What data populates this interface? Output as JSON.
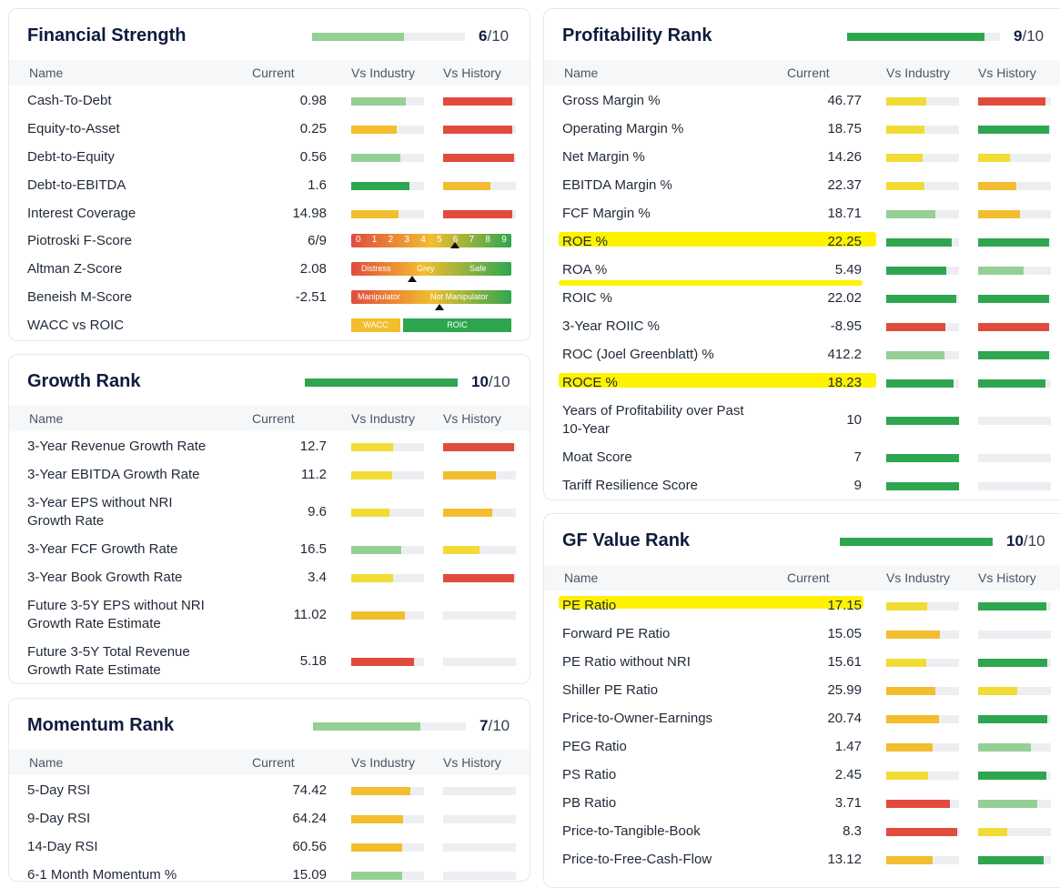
{
  "colors": {
    "green": "#2ea64f",
    "lightgreen": "#94cf96",
    "yellow": "#f0dc34",
    "orange": "#f2bd2f",
    "red": "#e14b3e",
    "empty": "#eceef1"
  },
  "headers": {
    "name": "Name",
    "current": "Current",
    "vs_industry": "Vs Industry",
    "vs_history": "Vs History"
  },
  "financial": {
    "title": "Financial Strength",
    "score": "6",
    "denom": "/10",
    "rank_fraction": 0.6,
    "rows": [
      {
        "name": "Cash-To-Debt",
        "current": "0.98",
        "ind": 0.75,
        "ind_color": "lightgreen",
        "hist": 0.95,
        "hist_color": "red"
      },
      {
        "name": "Equity-to-Asset",
        "current": "0.25",
        "ind": 0.62,
        "ind_color": "orange",
        "hist": 0.95,
        "hist_color": "red"
      },
      {
        "name": "Debt-to-Equity",
        "current": "0.56",
        "ind": 0.68,
        "ind_color": "lightgreen",
        "hist": 0.98,
        "hist_color": "red"
      },
      {
        "name": "Debt-to-EBITDA",
        "current": "1.6",
        "ind": 0.8,
        "ind_color": "green",
        "hist": 0.65,
        "hist_color": "orange"
      },
      {
        "name": "Interest Coverage",
        "current": "14.98",
        "ind": 0.65,
        "ind_color": "orange",
        "hist": 0.95,
        "hist_color": "red"
      }
    ],
    "piotroski": {
      "name": "Piotroski F-Score",
      "current": "6/9",
      "digits": [
        "0",
        "1",
        "2",
        "3",
        "4",
        "5",
        "6",
        "7",
        "8",
        "9"
      ]
    },
    "altman": {
      "name": "Altman Z-Score",
      "current": "2.08",
      "labels": [
        "Distress",
        "Grey",
        "Safe"
      ]
    },
    "beneish": {
      "name": "Beneish M-Score",
      "current": "-2.51",
      "labels": [
        "Manipulator",
        "Not Manipulator"
      ]
    },
    "wacc": {
      "name": "WACC vs ROIC",
      "labels": [
        "WACC",
        "ROIC"
      ]
    }
  },
  "growth": {
    "title": "Growth Rank",
    "score": "10",
    "denom": "/10",
    "rank_fraction": 1.0,
    "rows": [
      {
        "name": "3-Year Revenue Growth Rate",
        "current": "12.7",
        "ind": 0.57,
        "ind_color": "yellow",
        "hist": 0.98,
        "hist_color": "red"
      },
      {
        "name": "3-Year EBITDA Growth Rate",
        "current": "11.2",
        "ind": 0.56,
        "ind_color": "yellow",
        "hist": 0.72,
        "hist_color": "orange"
      },
      {
        "name": "3-Year EPS without NRI",
        "name2": "Growth Rate",
        "current": "9.6",
        "ind": 0.53,
        "ind_color": "yellow",
        "hist": 0.68,
        "hist_color": "orange"
      },
      {
        "name": "3-Year FCF Growth Rate",
        "current": "16.5",
        "ind": 0.69,
        "ind_color": "lightgreen",
        "hist": 0.5,
        "hist_color": "yellow"
      },
      {
        "name": "3-Year Book Growth Rate",
        "current": "3.4",
        "ind": 0.57,
        "ind_color": "yellow",
        "hist": 0.98,
        "hist_color": "red"
      },
      {
        "name": "Future 3-5Y EPS without NRI",
        "name2": "Growth Rate Estimate",
        "current": "11.02",
        "ind": 0.74,
        "ind_color": "orange",
        "hist": 0,
        "hist_color": "empty"
      },
      {
        "name": "Future 3-5Y Total Revenue",
        "name2": "Growth Rate Estimate",
        "current": "5.18",
        "ind": 0.86,
        "ind_color": "red",
        "hist": 0,
        "hist_color": "empty"
      }
    ]
  },
  "momentum": {
    "title": "Momentum Rank",
    "score": "7",
    "denom": "/10",
    "rank_fraction": 0.7,
    "rows": [
      {
        "name": "5-Day RSI",
        "current": "74.42",
        "ind": 0.81,
        "ind_color": "orange",
        "hist": 0,
        "hist_color": "empty"
      },
      {
        "name": "9-Day RSI",
        "current": "64.24",
        "ind": 0.71,
        "ind_color": "orange",
        "hist": 0,
        "hist_color": "empty"
      },
      {
        "name": "14-Day RSI",
        "current": "60.56",
        "ind": 0.7,
        "ind_color": "orange",
        "hist": 0,
        "hist_color": "empty"
      },
      {
        "name": "6-1 Month Momentum %",
        "current": "15.09",
        "ind": 0.7,
        "ind_color": "lightgreen",
        "hist": 0,
        "hist_color": "empty"
      }
    ]
  },
  "profitability": {
    "title": "Profitability Rank",
    "score": "9",
    "denom": "/10",
    "rank_fraction": 0.9,
    "rows": [
      {
        "name": "Gross Margin %",
        "current": "46.77",
        "ind": 0.55,
        "ind_color": "yellow",
        "hist": 0.92,
        "hist_color": "red"
      },
      {
        "name": "Operating Margin %",
        "current": "18.75",
        "ind": 0.53,
        "ind_color": "yellow",
        "hist": 0.98,
        "hist_color": "green"
      },
      {
        "name": "Net Margin %",
        "current": "14.26",
        "ind": 0.5,
        "ind_color": "yellow",
        "hist": 0.44,
        "hist_color": "yellow"
      },
      {
        "name": "EBITDA Margin %",
        "current": "22.37",
        "ind": 0.52,
        "ind_color": "yellow",
        "hist": 0.52,
        "hist_color": "orange"
      },
      {
        "name": "FCF Margin %",
        "current": "18.71",
        "ind": 0.67,
        "ind_color": "lightgreen",
        "hist": 0.57,
        "hist_color": "orange"
      },
      {
        "name": "ROE %",
        "current": "22.25",
        "ind": 0.9,
        "ind_color": "green",
        "hist": 0.98,
        "hist_color": "green",
        "hl": true
      },
      {
        "name": "ROA %",
        "current": "5.49",
        "ind": 0.83,
        "ind_color": "green",
        "hist": 0.63,
        "hist_color": "lightgreen"
      },
      {
        "name": "ROIC %",
        "current": "22.02",
        "ind": 0.96,
        "ind_color": "green",
        "hist": 0.98,
        "hist_color": "green",
        "hl_line": true
      },
      {
        "name": "3-Year ROIIC %",
        "current": "-8.95",
        "ind": 0.81,
        "ind_color": "red",
        "hist": 0.98,
        "hist_color": "red"
      },
      {
        "name": "ROC (Joel Greenblatt) %",
        "current": "412.2",
        "ind": 0.8,
        "ind_color": "lightgreen",
        "hist": 0.98,
        "hist_color": "green"
      },
      {
        "name": "ROCE %",
        "current": "18.23",
        "ind": 0.93,
        "ind_color": "green",
        "hist": 0.93,
        "hist_color": "green",
        "hl": true
      },
      {
        "name": "Years of Profitability over Past",
        "name2": "10-Year",
        "current": "10",
        "ind": 1.0,
        "ind_color": "green",
        "hist": 0,
        "hist_color": "empty"
      },
      {
        "name": "Moat Score",
        "current": "7",
        "ind": 1.0,
        "ind_color": "green",
        "hist": 0,
        "hist_color": "empty"
      },
      {
        "name": "Tariff Resilience Score",
        "current": "9",
        "ind": 1.0,
        "ind_color": "green",
        "hist": 0,
        "hist_color": "empty"
      }
    ]
  },
  "gfvalue": {
    "title": "GF Value Rank",
    "score": "10",
    "denom": "/10",
    "rank_fraction": 1.0,
    "rows": [
      {
        "name": "PE Ratio",
        "current": "17.15",
        "ind": 0.56,
        "ind_color": "yellow",
        "hist": 0.94,
        "hist_color": "green",
        "hl": true
      },
      {
        "name": "Forward PE Ratio",
        "current": "15.05",
        "ind": 0.74,
        "ind_color": "orange",
        "hist": 0,
        "hist_color": "empty"
      },
      {
        "name": "PE Ratio without NRI",
        "current": "15.61",
        "ind": 0.55,
        "ind_color": "yellow",
        "hist": 0.95,
        "hist_color": "green"
      },
      {
        "name": "Shiller PE Ratio",
        "current": "25.99",
        "ind": 0.67,
        "ind_color": "orange",
        "hist": 0.54,
        "hist_color": "yellow"
      },
      {
        "name": "Price-to-Owner-Earnings",
        "current": "20.74",
        "ind": 0.73,
        "ind_color": "orange",
        "hist": 0.95,
        "hist_color": "green"
      },
      {
        "name": "PEG Ratio",
        "current": "1.47",
        "ind": 0.64,
        "ind_color": "orange",
        "hist": 0.73,
        "hist_color": "lightgreen"
      },
      {
        "name": "PS Ratio",
        "current": "2.45",
        "ind": 0.58,
        "ind_color": "yellow",
        "hist": 0.94,
        "hist_color": "green"
      },
      {
        "name": "PB Ratio",
        "current": "3.71",
        "ind": 0.88,
        "ind_color": "red",
        "hist": 0.81,
        "hist_color": "lightgreen"
      },
      {
        "name": "Price-to-Tangible-Book",
        "current": "8.3",
        "ind": 0.97,
        "ind_color": "red",
        "hist": 0.4,
        "hist_color": "yellow"
      },
      {
        "name": "Price-to-Free-Cash-Flow",
        "current": "13.12",
        "ind": 0.64,
        "ind_color": "orange",
        "hist": 0.9,
        "hist_color": "green"
      }
    ]
  }
}
